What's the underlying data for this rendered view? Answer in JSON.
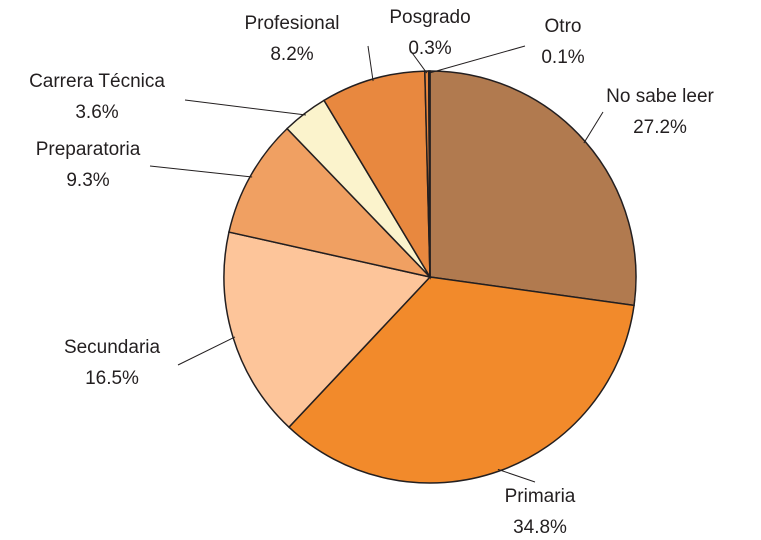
{
  "chart_data": {
    "type": "pie",
    "categories": [
      "No sabe leer",
      "Primaria",
      "Secundaria",
      "Preparatoria",
      "Carrera Técnica",
      "Profesional",
      "Posgrado",
      "Otro"
    ],
    "values": [
      27.2,
      34.8,
      16.5,
      9.3,
      3.6,
      8.2,
      0.3,
      0.1
    ],
    "value_labels": [
      "27.2%",
      "34.8%",
      "16.5%",
      "9.3%",
      "3.6%",
      "8.2%",
      "0.3%",
      "0.1%"
    ],
    "colors": [
      "#b17a4f",
      "#f28a2b",
      "#fdc59a",
      "#f0a062",
      "#fbf3cc",
      "#e8883f",
      "#e8883f",
      "#1f5c8c"
    ]
  }
}
